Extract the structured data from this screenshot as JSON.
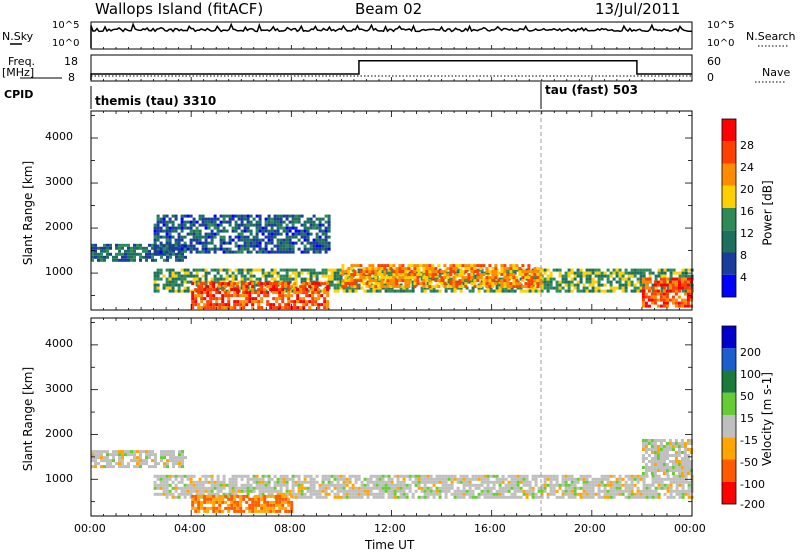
{
  "header": {
    "station": "Wallops Island (fitACF)",
    "beam": "Beam 02",
    "date": "13/Jul/2011"
  },
  "summary": {
    "nsky_label": "N.Sky",
    "nsky_ticks": [
      "10^5",
      "10^0"
    ],
    "nsearch_label": "N.Search",
    "nsearch_ticks": [
      "10^5",
      "10^0"
    ],
    "freq_label": "Freq.",
    "freq_unit": "[MHz]",
    "freq_ticks": [
      "18",
      "8"
    ],
    "nave_label": "Nave",
    "nave_ticks": [
      "60",
      "0"
    ],
    "cpid_label": "CPID",
    "cpid_segments": [
      {
        "name": "themis (tau) 3310",
        "start_h": 0,
        "end_h": 18
      },
      {
        "name": "tau (fast) 503",
        "start_h": 18,
        "end_h": 24
      }
    ],
    "freq_steps": [
      {
        "start_h": 0,
        "end_h": 10.7,
        "level": 0.25
      },
      {
        "start_h": 10.7,
        "end_h": 21.8,
        "level": 0.8
      },
      {
        "start_h": 21.8,
        "end_h": 24,
        "level": 0.25
      }
    ]
  },
  "power_panel": {
    "ylabel": "Slant Range [km]",
    "cbar_label": "Power [dB]",
    "cbar_ticks": [
      "28",
      "24",
      "20",
      "16",
      "12",
      "8",
      "4"
    ],
    "cbar_colors": [
      "#ff0000",
      "#ff4000",
      "#ff8c00",
      "#ffd000",
      "#2e8b57",
      "#1e6f5c",
      "#1a3c9c",
      "#0000ff"
    ]
  },
  "velocity_panel": {
    "ylabel": "Slant Range [km]",
    "cbar_label": "Velocity [m s-1]",
    "cbar_ticks": [
      "200",
      "100",
      "50",
      "15",
      "-15",
      "-50",
      "-100",
      "-200"
    ],
    "cbar_colors": [
      "#0000cc",
      "#1a5fd0",
      "#1a7a3a",
      "#66cc33",
      "#bfbfbf",
      "#ffa500",
      "#ff5a00",
      "#ff0000"
    ]
  },
  "chart_data": {
    "type": "heatmap",
    "x_ticks": [
      "00:00",
      "04:00",
      "08:00",
      "12:00",
      "16:00",
      "20:00",
      "00:00"
    ],
    "xlabel": "Time UT",
    "y_ticks": [
      "1000",
      "2000",
      "3000",
      "4000"
    ],
    "xlim_hours": [
      0,
      24
    ],
    "ylim_km": [
      180,
      4600
    ],
    "power_regions": [
      {
        "t0": 0,
        "t1": 3.8,
        "r0": 1300,
        "r1": 1650,
        "value_db": 10
      },
      {
        "t0": 2.5,
        "t1": 9.5,
        "r0": 1500,
        "r1": 2300,
        "value_db": 8
      },
      {
        "t0": 2.5,
        "t1": 24,
        "r0": 600,
        "r1": 1100,
        "value_db": 14
      },
      {
        "t0": 4,
        "t1": 9.5,
        "r0": 250,
        "r1": 800,
        "value_db": 26
      },
      {
        "t0": 10,
        "t1": 18,
        "r0": 700,
        "r1": 1200,
        "value_db": 22
      },
      {
        "t0": 22,
        "t1": 24,
        "r0": 250,
        "r1": 900,
        "value_db": 26
      }
    ],
    "velocity_regions": [
      {
        "t0": 0,
        "t1": 3.8,
        "r0": 1300,
        "r1": 1650,
        "value_ms": 0
      },
      {
        "t0": 2.5,
        "t1": 24,
        "r0": 600,
        "r1": 1100,
        "value_ms": 0
      },
      {
        "t0": 4,
        "t1": 8,
        "r0": 250,
        "r1": 650,
        "value_ms": -50
      },
      {
        "t0": 22,
        "t1": 24,
        "r0": 1100,
        "r1": 1900,
        "value_ms": 0
      }
    ]
  }
}
